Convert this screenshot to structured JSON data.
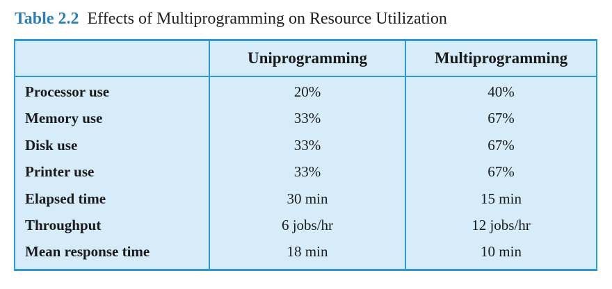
{
  "caption": {
    "label": "Table 2.2",
    "title": "Effects of Multiprogramming on Resource Utilization"
  },
  "table": {
    "headers": [
      "",
      "Uniprogramming",
      "Multiprogramming"
    ],
    "rows": [
      {
        "label": "Processor use",
        "uni": "20%",
        "multi": "40%"
      },
      {
        "label": "Memory use",
        "uni": "33%",
        "multi": "67%"
      },
      {
        "label": "Disk use",
        "uni": "33%",
        "multi": "67%"
      },
      {
        "label": "Printer use",
        "uni": "33%",
        "multi": "67%"
      },
      {
        "label": "Elapsed time",
        "uni": "30 min",
        "multi": "15 min"
      },
      {
        "label": "Throughput",
        "uni": "6 jobs/hr",
        "multi": "12 jobs/hr"
      },
      {
        "label": "Mean response time",
        "uni": "18 min",
        "multi": "10 min"
      }
    ]
  },
  "colors": {
    "accent": "#2c9ad4",
    "caption_label": "#2b7fb8",
    "table_fill": "#d6ecf9"
  }
}
